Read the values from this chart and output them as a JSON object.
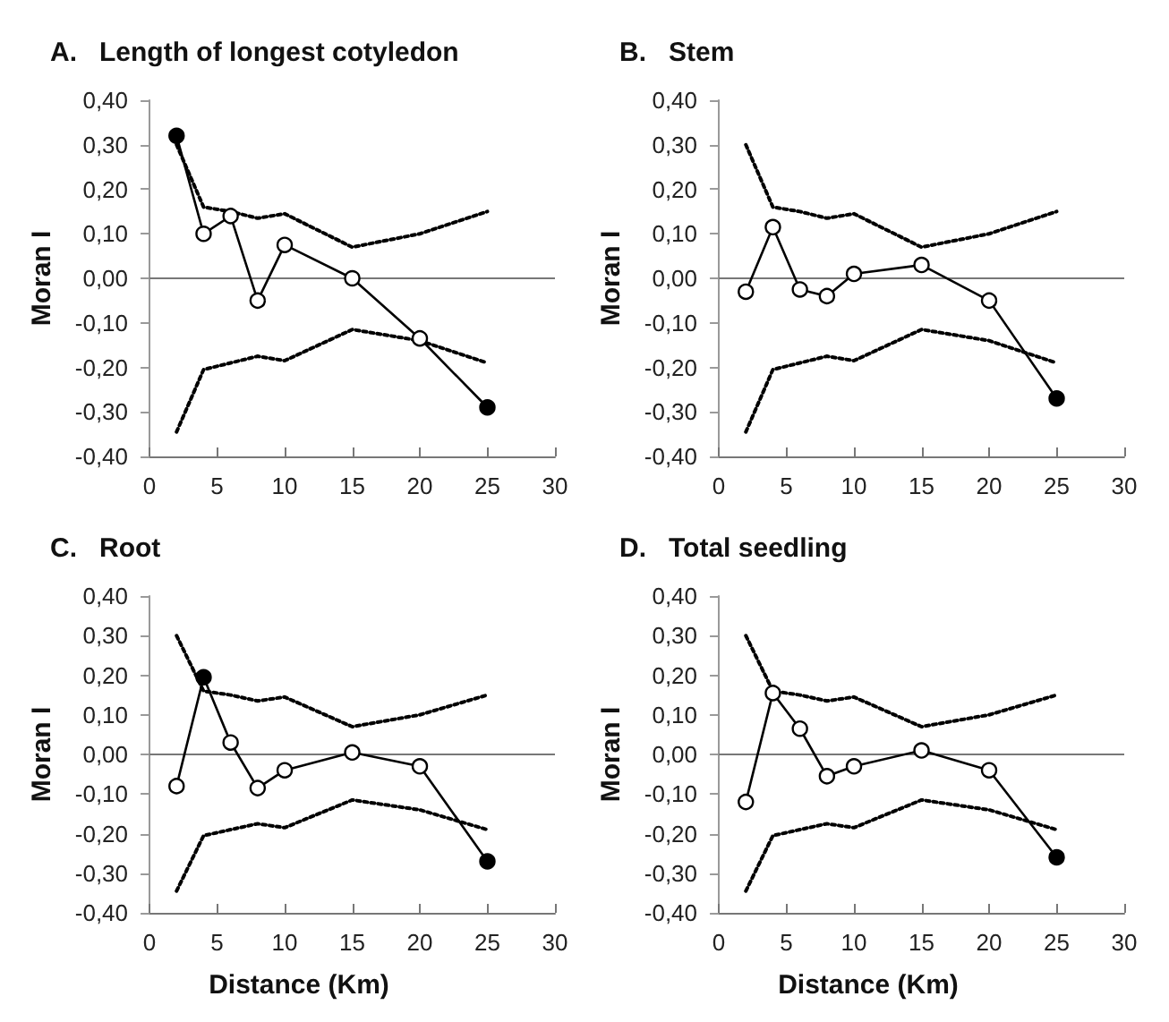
{
  "chart_data": [
    {
      "type": "line",
      "title": "A.   Length of longest cotyledon",
      "ylabel": "Moran I",
      "x": [
        2,
        4,
        6,
        8,
        10,
        15,
        20,
        25
      ],
      "xlim": [
        0,
        30
      ],
      "xticks": [
        0,
        5,
        10,
        15,
        20,
        25,
        30
      ],
      "ylim": [
        -0.4,
        0.4
      ],
      "yticks": [
        {
          "value": -0.4,
          "label": "-0,40"
        },
        {
          "value": -0.3,
          "label": "-0,30"
        },
        {
          "value": -0.2,
          "label": "-0,20"
        },
        {
          "value": -0.1,
          "label": "-0,10"
        },
        {
          "value": 0,
          "label": "0,00"
        },
        {
          "value": 0.1,
          "label": "0,10"
        },
        {
          "value": 0.2,
          "label": "0,20"
        },
        {
          "value": 0.3,
          "label": "0,30"
        },
        {
          "value": 0.4,
          "label": "0,40"
        }
      ],
      "marker": "circle",
      "series": [
        {
          "color": "#000000",
          "values": [
            0.32,
            0.1,
            0.14,
            -0.05,
            0.075,
            0.0,
            -0.135,
            -0.29
          ],
          "colors": [
            "#000000",
            "#ffffff",
            "#ffffff",
            "#ffffff",
            "#ffffff",
            "#ffffff",
            "#ffffff",
            "#000000"
          ]
        },
        {
          "color": "#000000",
          "marker": "none",
          "line_style": "dotted",
          "values": [
            0.3,
            0.16,
            0.15,
            0.135,
            0.145,
            0.07,
            0.1,
            0.15
          ]
        },
        {
          "color": "#000000",
          "marker": "none",
          "line_style": "dotted",
          "values": [
            -0.345,
            -0.205,
            -0.19,
            -0.175,
            -0.185,
            -0.115,
            -0.14,
            -0.19
          ]
        }
      ]
    },
    {
      "type": "line",
      "title": "B.   Stem",
      "ylabel": "Moran I",
      "x": [
        2,
        4,
        6,
        8,
        10,
        15,
        20,
        25
      ],
      "xlim": [
        0,
        30
      ],
      "xticks": [
        0,
        5,
        10,
        15,
        20,
        25,
        30
      ],
      "ylim": [
        -0.4,
        0.4
      ],
      "yticks": [
        {
          "value": -0.4,
          "label": "-0,40"
        },
        {
          "value": -0.3,
          "label": "-0,30"
        },
        {
          "value": -0.2,
          "label": "-0,20"
        },
        {
          "value": -0.1,
          "label": "-0,10"
        },
        {
          "value": 0,
          "label": "0,00"
        },
        {
          "value": 0.1,
          "label": "0,10"
        },
        {
          "value": 0.2,
          "label": "0,20"
        },
        {
          "value": 0.3,
          "label": "0,30"
        },
        {
          "value": 0.4,
          "label": "0,40"
        }
      ],
      "marker": "circle",
      "series": [
        {
          "color": "#000000",
          "values": [
            -0.03,
            0.115,
            -0.025,
            -0.04,
            0.01,
            0.03,
            -0.05,
            -0.27
          ],
          "colors": [
            "#ffffff",
            "#ffffff",
            "#ffffff",
            "#ffffff",
            "#ffffff",
            "#ffffff",
            "#ffffff",
            "#000000"
          ]
        },
        {
          "color": "#000000",
          "marker": "none",
          "line_style": "dotted",
          "values": [
            0.3,
            0.16,
            0.15,
            0.135,
            0.145,
            0.07,
            0.1,
            0.15
          ]
        },
        {
          "color": "#000000",
          "marker": "none",
          "line_style": "dotted",
          "values": [
            -0.345,
            -0.205,
            -0.19,
            -0.175,
            -0.185,
            -0.115,
            -0.14,
            -0.19
          ]
        }
      ]
    },
    {
      "type": "line",
      "title": "C.   Root",
      "xlabel": "Distance (Km)",
      "ylabel": "Moran I",
      "x": [
        2,
        4,
        6,
        8,
        10,
        15,
        20,
        25
      ],
      "xlim": [
        0,
        30
      ],
      "xticks": [
        0,
        5,
        10,
        15,
        20,
        25,
        30
      ],
      "ylim": [
        -0.4,
        0.4
      ],
      "yticks": [
        {
          "value": -0.4,
          "label": "-0,40"
        },
        {
          "value": -0.3,
          "label": "-0,30"
        },
        {
          "value": -0.2,
          "label": "-0,20"
        },
        {
          "value": -0.1,
          "label": "-0,10"
        },
        {
          "value": 0,
          "label": "0,00"
        },
        {
          "value": 0.1,
          "label": "0,10"
        },
        {
          "value": 0.2,
          "label": "0,20"
        },
        {
          "value": 0.3,
          "label": "0,30"
        },
        {
          "value": 0.4,
          "label": "0,40"
        }
      ],
      "marker": "circle",
      "series": [
        {
          "color": "#000000",
          "values": [
            -0.08,
            0.195,
            0.03,
            -0.085,
            -0.04,
            0.005,
            -0.03,
            -0.27
          ],
          "colors": [
            "#ffffff",
            "#000000",
            "#ffffff",
            "#ffffff",
            "#ffffff",
            "#ffffff",
            "#ffffff",
            "#000000"
          ]
        },
        {
          "color": "#000000",
          "marker": "none",
          "line_style": "dotted",
          "values": [
            0.3,
            0.16,
            0.15,
            0.135,
            0.145,
            0.07,
            0.1,
            0.15
          ]
        },
        {
          "color": "#000000",
          "marker": "none",
          "line_style": "dotted",
          "values": [
            -0.345,
            -0.205,
            -0.19,
            -0.175,
            -0.185,
            -0.115,
            -0.14,
            -0.19
          ]
        }
      ]
    },
    {
      "type": "line",
      "title": "D.   Total seedling",
      "xlabel": "Distance (Km)",
      "ylabel": "Moran I",
      "x": [
        2,
        4,
        6,
        8,
        10,
        15,
        20,
        25
      ],
      "xlim": [
        0,
        30
      ],
      "xticks": [
        0,
        5,
        10,
        15,
        20,
        25,
        30
      ],
      "ylim": [
        -0.4,
        0.4
      ],
      "yticks": [
        {
          "value": -0.4,
          "label": "-0,40"
        },
        {
          "value": -0.3,
          "label": "-0,30"
        },
        {
          "value": -0.2,
          "label": "-0,20"
        },
        {
          "value": -0.1,
          "label": "-0,10"
        },
        {
          "value": 0,
          "label": "0,00"
        },
        {
          "value": 0.1,
          "label": "0,10"
        },
        {
          "value": 0.2,
          "label": "0,20"
        },
        {
          "value": 0.3,
          "label": "0,30"
        },
        {
          "value": 0.4,
          "label": "0,40"
        }
      ],
      "marker": "circle",
      "series": [
        {
          "color": "#000000",
          "values": [
            -0.12,
            0.155,
            0.065,
            -0.055,
            -0.03,
            0.01,
            -0.04,
            -0.26
          ],
          "colors": [
            "#ffffff",
            "#ffffff",
            "#ffffff",
            "#ffffff",
            "#ffffff",
            "#ffffff",
            "#ffffff",
            "#000000"
          ]
        },
        {
          "color": "#000000",
          "marker": "none",
          "line_style": "dotted",
          "values": [
            0.3,
            0.16,
            0.15,
            0.135,
            0.145,
            0.07,
            0.1,
            0.15
          ]
        },
        {
          "color": "#000000",
          "marker": "none",
          "line_style": "dotted",
          "values": [
            -0.345,
            -0.205,
            -0.19,
            -0.175,
            -0.185,
            -0.115,
            -0.14,
            -0.19
          ]
        }
      ]
    }
  ]
}
